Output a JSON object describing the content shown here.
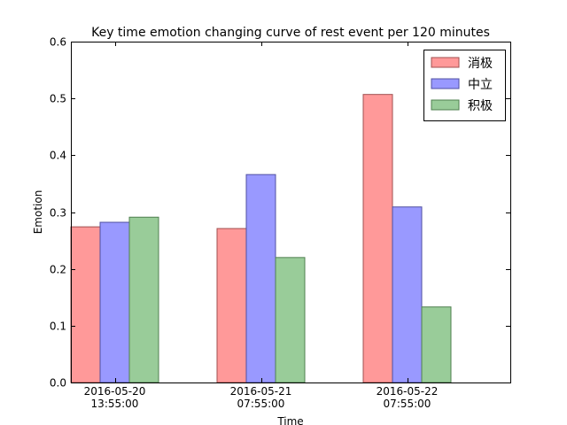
{
  "chart_data": {
    "type": "bar",
    "title": "Key time emotion changing curve of rest event per 120 minutes",
    "xlabel": "Time",
    "ylabel": "Emotion",
    "ylim": [
      0,
      0.6
    ],
    "yticks": [
      "0.0",
      "0.1",
      "0.2",
      "0.3",
      "0.4",
      "0.5",
      "0.6"
    ],
    "categories": [
      [
        "2016-05-20",
        "13:55:00"
      ],
      [
        "2016-05-21",
        "07:55:00"
      ],
      [
        "2016-05-22",
        "07:55:00"
      ]
    ],
    "series": [
      {
        "name": "消极",
        "color": "#ff9999",
        "edge": "#a05050",
        "values": [
          0.274,
          0.271,
          0.507
        ]
      },
      {
        "name": "中立",
        "color": "#9999ff",
        "edge": "#5050a0",
        "values": [
          0.282,
          0.366,
          0.309
        ]
      },
      {
        "name": "积极",
        "color": "#99cc99",
        "edge": "#508050",
        "values": [
          0.291,
          0.22,
          0.133
        ]
      }
    ],
    "grid": false,
    "legend_position": "top-right"
  }
}
